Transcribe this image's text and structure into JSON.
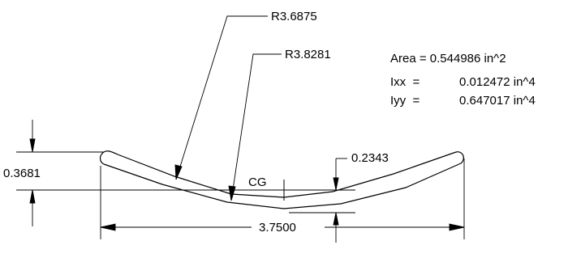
{
  "dimensions": {
    "inner_radius": "R3.6875",
    "outer_radius": "R3.8281",
    "total_height": "0.3681",
    "cg_offset": "0.2343",
    "width": "3.7500",
    "cg_label": "CG"
  },
  "properties": {
    "area": "Area = 0.544986 in^2",
    "ixx_label": "Ixx  =",
    "ixx_value": "0.012472 in^4",
    "iyy_label": "Iyy  =",
    "iyy_value": "0.647017 in^4"
  },
  "colors": {
    "ink": "#000000",
    "background": "#ffffff"
  }
}
